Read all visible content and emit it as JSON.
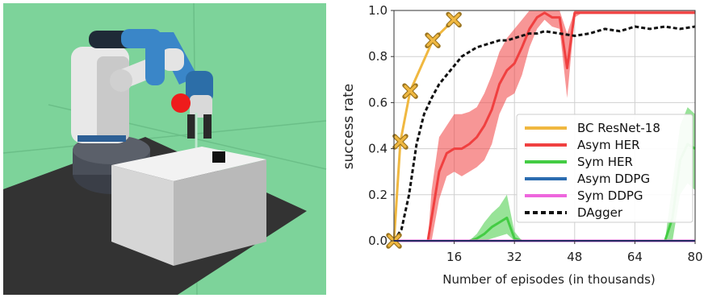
{
  "chart_data": {
    "type": "line",
    "xlabel": "Number of episodes (in thousands)",
    "ylabel": "success rate",
    "xlim": [
      0,
      80
    ],
    "ylim": [
      0,
      1.0
    ],
    "xticks": [
      16,
      32,
      48,
      64,
      80
    ],
    "yticks": [
      0.0,
      0.2,
      0.4,
      0.6,
      0.8,
      1.0
    ],
    "x_tick_labels": [
      "16",
      "32",
      "48",
      "64",
      "80"
    ],
    "y_tick_labels": [
      "0.0",
      "0.2",
      "0.4",
      "0.6",
      "0.8",
      "1.0"
    ],
    "grid": true,
    "legend_position": "bottom-right",
    "series": [
      {
        "name": "BC ResNet-18",
        "color": "#f0b840",
        "marker": "x",
        "x": [
          0,
          1.7,
          4.3,
          10.3,
          15.9
        ],
        "y": [
          0.0,
          0.43,
          0.65,
          0.87,
          0.96
        ]
      },
      {
        "name": "Asym HER",
        "color": "#f04040",
        "x": [
          0,
          9,
          10,
          12,
          14,
          16,
          18,
          20,
          22,
          24,
          26,
          28,
          30,
          32,
          34,
          36,
          38,
          40,
          42,
          44,
          46,
          48,
          50,
          55,
          60,
          65,
          70,
          75,
          80
        ],
        "y": [
          0,
          0,
          0.1,
          0.3,
          0.38,
          0.4,
          0.4,
          0.42,
          0.45,
          0.5,
          0.57,
          0.68,
          0.74,
          0.77,
          0.84,
          0.92,
          0.97,
          0.99,
          0.97,
          0.97,
          0.75,
          0.99,
          0.99,
          0.99,
          0.99,
          0.99,
          0.99,
          0.99,
          0.99
        ],
        "band_lower": [
          0,
          0,
          0,
          0.18,
          0.28,
          0.3,
          0.28,
          0.3,
          0.32,
          0.35,
          0.42,
          0.55,
          0.62,
          0.64,
          0.72,
          0.84,
          0.92,
          0.96,
          0.93,
          0.92,
          0.62,
          0.97,
          0.99,
          0.99,
          0.99,
          0.99,
          0.99,
          0.99,
          0.99
        ],
        "band_upper": [
          0,
          0,
          0.22,
          0.45,
          0.5,
          0.55,
          0.55,
          0.56,
          0.58,
          0.64,
          0.72,
          0.82,
          0.88,
          0.92,
          0.96,
          1.0,
          1.0,
          1.0,
          1.0,
          1.0,
          0.9,
          1.0,
          1.0,
          1.0,
          1.0,
          1.0,
          1.0,
          1.0,
          1.0
        ]
      },
      {
        "name": "Sym HER",
        "color": "#44cc44",
        "x": [
          0,
          20,
          22,
          24,
          26,
          28,
          30,
          32,
          34,
          36,
          40,
          44,
          48,
          52,
          56,
          60,
          64,
          68,
          72,
          74,
          76,
          78,
          80
        ],
        "y": [
          0,
          0,
          0.01,
          0.03,
          0.06,
          0.08,
          0.1,
          0.01,
          0,
          0,
          0,
          0,
          0,
          0,
          0,
          0,
          0,
          0,
          0,
          0.1,
          0.35,
          0.42,
          0.4
        ],
        "band_lower": [
          0,
          0,
          0,
          0,
          0.01,
          0.02,
          0.03,
          0,
          0,
          0,
          0,
          0,
          0,
          0,
          0,
          0,
          0,
          0,
          0,
          0,
          0.2,
          0.25,
          0.22
        ],
        "band_upper": [
          0,
          0,
          0.03,
          0.08,
          0.12,
          0.15,
          0.2,
          0.04,
          0,
          0,
          0,
          0,
          0,
          0,
          0,
          0,
          0,
          0,
          0,
          0.25,
          0.5,
          0.58,
          0.55
        ]
      },
      {
        "name": "Asym DDPG",
        "color": "#2b6cb0",
        "x": [
          0,
          80
        ],
        "y": [
          0,
          0
        ]
      },
      {
        "name": "Sym DDPG",
        "color": "#ee66dd",
        "x": [
          0,
          80
        ],
        "y": [
          0,
          0
        ]
      },
      {
        "name": "DAgger",
        "color": "#111111",
        "dashed": true,
        "x": [
          0,
          2,
          4,
          6,
          8,
          10,
          12,
          14,
          16,
          18,
          20,
          22,
          24,
          26,
          28,
          30,
          32,
          34,
          36,
          38,
          40,
          44,
          48,
          52,
          56,
          60,
          64,
          68,
          72,
          76,
          80
        ],
        "y": [
          0,
          0.05,
          0.2,
          0.42,
          0.55,
          0.62,
          0.68,
          0.72,
          0.76,
          0.8,
          0.82,
          0.84,
          0.85,
          0.86,
          0.87,
          0.87,
          0.88,
          0.89,
          0.9,
          0.9,
          0.91,
          0.9,
          0.89,
          0.9,
          0.92,
          0.91,
          0.93,
          0.92,
          0.93,
          0.92,
          0.93
        ]
      }
    ]
  },
  "scene_colors": {
    "background": "#7dd39a",
    "floor": "#333333",
    "target": "#ee1c1c"
  }
}
